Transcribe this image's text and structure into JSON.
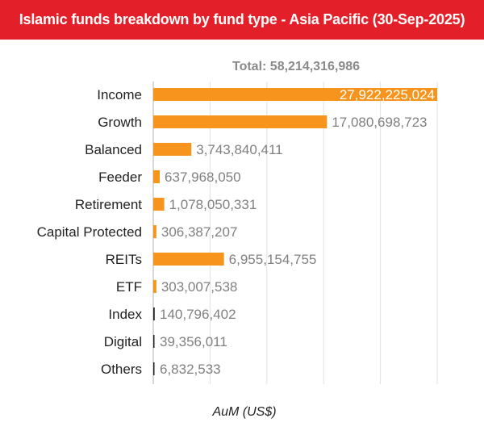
{
  "title": "Islamic funds breakdown by fund type - Asia Pacific (30-Sep-2025)",
  "colors": {
    "header": "#e3202a",
    "bar": "#f7941d",
    "marker": "#222222"
  },
  "chart_data": {
    "type": "bar",
    "orientation": "horizontal",
    "total_label": "Total: 58,214,316,986",
    "xlabel": "AuM (US$)",
    "ylabel": "",
    "xlim": [
      0,
      28000000000
    ],
    "grid": true,
    "legend": "none",
    "categories": [
      "Income",
      "Growth",
      "Balanced",
      "Feeder",
      "Retirement",
      "Capital Protected",
      "REITs",
      "ETF",
      "Index",
      "Digital",
      "Others"
    ],
    "values": [
      27922225024,
      17080698723,
      3743840411,
      637968050,
      1078050331,
      306387207,
      6955154755,
      303007538,
      140796402,
      39356011,
      6832533
    ],
    "value_labels": [
      "27,922,225,024",
      "17,080,698,723",
      "3,743,840,411",
      "637,968,050",
      "1,078,050,331",
      "306,387,207",
      "6,955,154,755",
      "303,007,538",
      "140,796,402",
      "39,356,011",
      "6,832,533"
    ]
  }
}
